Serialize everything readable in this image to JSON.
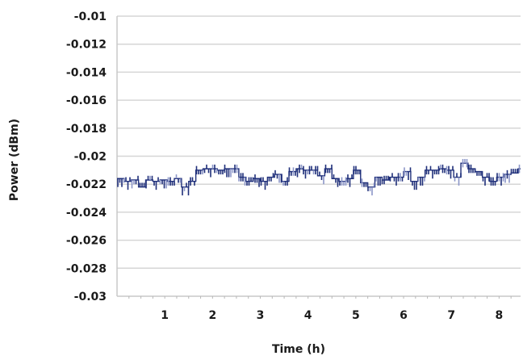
{
  "chart_data": {
    "type": "line",
    "title": "",
    "xlabel": "Time (h)",
    "ylabel": "Power (dBm)",
    "xlim": [
      0,
      8.45
    ],
    "ylim": [
      -0.03,
      -0.01
    ],
    "x_ticks": [
      1,
      2,
      3,
      4,
      5,
      6,
      7,
      8
    ],
    "y_ticks": [
      -0.01,
      -0.012,
      -0.014,
      -0.016,
      -0.018,
      -0.02,
      -0.022,
      -0.024,
      -0.026,
      -0.028,
      -0.03
    ],
    "y_tick_labels": [
      "-0.01",
      "-0.012",
      "-0.014",
      "-0.016",
      "-0.018",
      "-0.02",
      "-0.022",
      "-0.024",
      "-0.026",
      "-0.028",
      "-0.03"
    ],
    "grid": true,
    "colors": {
      "series": "#1f2f7a",
      "series_light": "#8c96c8",
      "grid": "#d6d6d6"
    },
    "series": [
      {
        "x": [
          0.0,
          0.15,
          0.3,
          0.45,
          0.6,
          0.75,
          0.9,
          1.05,
          1.2,
          1.35,
          1.5,
          1.65,
          1.8,
          1.95,
          2.1,
          2.25,
          2.4,
          2.55,
          2.7,
          2.85,
          3.0,
          3.15,
          3.3,
          3.45,
          3.6,
          3.75,
          3.9,
          4.05,
          4.2,
          4.35,
          4.5,
          4.65,
          4.8,
          4.95,
          5.1,
          5.25,
          5.4,
          5.55,
          5.7,
          5.85,
          6.0,
          6.15,
          6.3,
          6.45,
          6.6,
          6.75,
          6.9,
          7.05,
          7.2,
          7.35,
          7.5,
          7.65,
          7.8,
          7.95,
          8.1,
          8.25,
          8.4
        ],
        "values": [
          -0.0216,
          -0.0218,
          -0.0217,
          -0.0222,
          -0.0217,
          -0.0218,
          -0.0217,
          -0.0218,
          -0.0216,
          -0.0222,
          -0.0218,
          -0.021,
          -0.0209,
          -0.0209,
          -0.021,
          -0.0209,
          -0.0209,
          -0.0215,
          -0.0218,
          -0.0216,
          -0.0218,
          -0.0215,
          -0.0213,
          -0.0218,
          -0.0211,
          -0.0209,
          -0.021,
          -0.021,
          -0.0214,
          -0.0209,
          -0.0216,
          -0.0218,
          -0.0216,
          -0.021,
          -0.0219,
          -0.0222,
          -0.0215,
          -0.0217,
          -0.0215,
          -0.0215,
          -0.0211,
          -0.0218,
          -0.0215,
          -0.021,
          -0.021,
          -0.0209,
          -0.021,
          -0.0215,
          -0.0205,
          -0.0209,
          -0.0211,
          -0.0215,
          -0.0218,
          -0.0215,
          -0.0213,
          -0.0212,
          -0.0209
        ]
      }
    ]
  }
}
